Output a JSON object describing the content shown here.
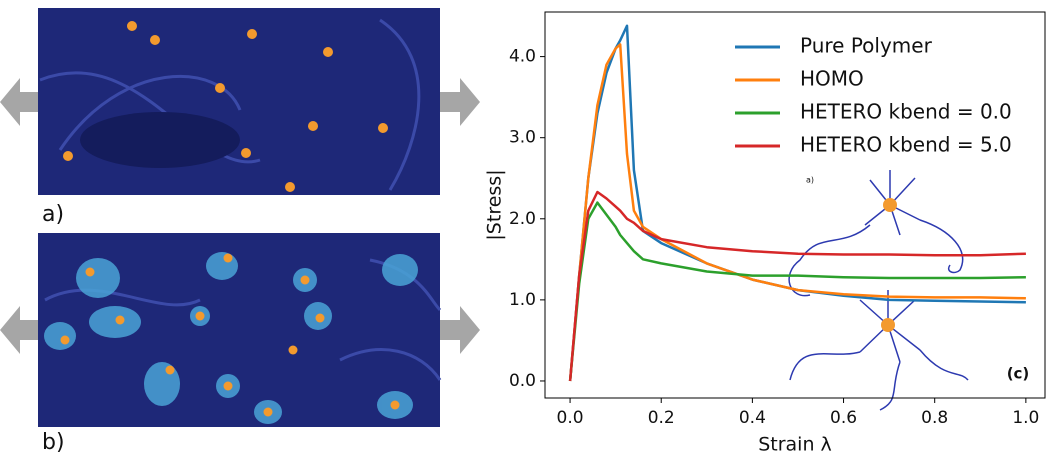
{
  "panels": {
    "a": "a)",
    "b": "b)"
  },
  "chart_data": {
    "type": "line",
    "xlabel": "Strain λ",
    "ylabel": "|Stress|",
    "annotations": [
      "(c)",
      "a)"
    ],
    "x": [
      0,
      0.02,
      0.04,
      0.06,
      0.08,
      0.1,
      0.11,
      0.125,
      0.14,
      0.16,
      0.2,
      0.3,
      0.4,
      0.5,
      0.6,
      0.7,
      0.8,
      0.9,
      1.0
    ],
    "series": [
      {
        "name": "Pure Polymer",
        "color": "#1f77b4",
        "values": [
          0,
          1.3,
          2.5,
          3.3,
          3.8,
          4.1,
          4.2,
          4.38,
          2.6,
          1.85,
          1.7,
          1.45,
          1.25,
          1.12,
          1.05,
          1.0,
          0.99,
          0.98,
          0.97
        ]
      },
      {
        "name": "HOMO",
        "color": "#ff7f0e",
        "values": [
          0,
          1.3,
          2.5,
          3.4,
          3.9,
          4.1,
          4.15,
          2.8,
          2.1,
          1.9,
          1.75,
          1.45,
          1.25,
          1.12,
          1.07,
          1.04,
          1.03,
          1.03,
          1.02
        ]
      },
      {
        "name": "HETERO kbend = 0.0",
        "color": "#2ca02c",
        "values": [
          0,
          1.2,
          2.0,
          2.2,
          2.05,
          1.9,
          1.8,
          1.7,
          1.6,
          1.5,
          1.45,
          1.35,
          1.3,
          1.3,
          1.28,
          1.27,
          1.27,
          1.27,
          1.28
        ]
      },
      {
        "name": "HETERO kbend = 5.0",
        "color": "#d62728",
        "values": [
          0,
          1.3,
          2.1,
          2.33,
          2.25,
          2.15,
          2.1,
          2.0,
          1.95,
          1.85,
          1.75,
          1.65,
          1.6,
          1.57,
          1.56,
          1.56,
          1.55,
          1.55,
          1.57
        ]
      }
    ],
    "xlim": [
      -0.055,
      1.042
    ],
    "ylim": [
      -0.21,
      4.55
    ],
    "xticks": [
      {
        "value": 0,
        "label": "0.0"
      },
      {
        "value": 0.2,
        "label": "0.2"
      },
      {
        "value": 0.4,
        "label": "0.4"
      },
      {
        "value": 0.6,
        "label": "0.6"
      },
      {
        "value": 0.8,
        "label": "0.8"
      },
      {
        "value": 1.0,
        "label": "1.0"
      }
    ],
    "yticks": [
      {
        "value": 0,
        "label": "0.0"
      },
      {
        "value": 1.0,
        "label": "1.0"
      },
      {
        "value": 2.0,
        "label": "2.0"
      },
      {
        "value": 3.0,
        "label": "3.0"
      },
      {
        "value": 4.0,
        "label": "4.0"
      }
    ],
    "legend": "upper right",
    "grid": false
  }
}
